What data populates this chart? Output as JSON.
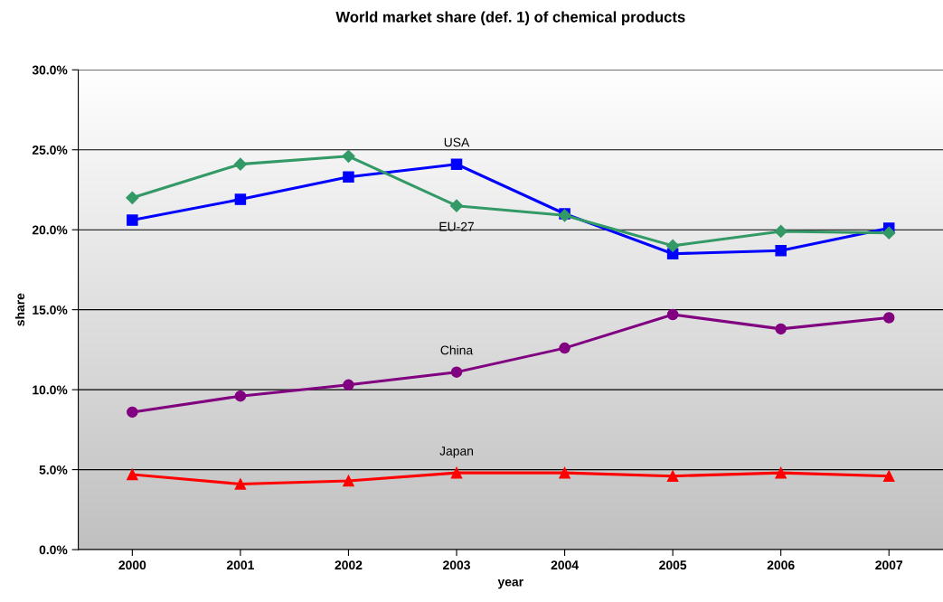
{
  "chart_data": {
    "type": "line",
    "title": "World market share (def. 1) of chemical products",
    "xlabel": "year",
    "ylabel": "share",
    "categories": [
      "2000",
      "2001",
      "2002",
      "2003",
      "2004",
      "2005",
      "2006",
      "2007"
    ],
    "series": [
      {
        "name": "EU-27",
        "color": "#339966",
        "marker": "diamond",
        "values": [
          22.0,
          24.1,
          24.6,
          21.5,
          20.9,
          19.0,
          19.9,
          19.8
        ]
      },
      {
        "name": "USA",
        "color": "#0000ff",
        "marker": "square",
        "values": [
          20.6,
          21.9,
          23.3,
          24.1,
          21.0,
          18.5,
          18.7,
          20.1
        ]
      },
      {
        "name": "China",
        "color": "#800080",
        "marker": "circle",
        "values": [
          8.6,
          9.6,
          10.3,
          11.1,
          12.6,
          14.7,
          13.8,
          14.5
        ]
      },
      {
        "name": "Japan",
        "color": "#ff0000",
        "marker": "triangle",
        "values": [
          4.7,
          4.1,
          4.3,
          4.8,
          4.8,
          4.6,
          4.8,
          4.6
        ]
      }
    ],
    "ylim": [
      0,
      30
    ],
    "yticks": [
      {
        "value": 0,
        "label": "0.0%"
      },
      {
        "value": 5,
        "label": "5.0%"
      },
      {
        "value": 10,
        "label": "10.0%"
      },
      {
        "value": 15,
        "label": "15.0%"
      },
      {
        "value": 20,
        "label": "20.0%"
      },
      {
        "value": 25,
        "label": "25.0%"
      },
      {
        "value": 30,
        "label": "30.0%"
      }
    ],
    "grid": "y",
    "legend": false,
    "line_style": "solid"
  }
}
